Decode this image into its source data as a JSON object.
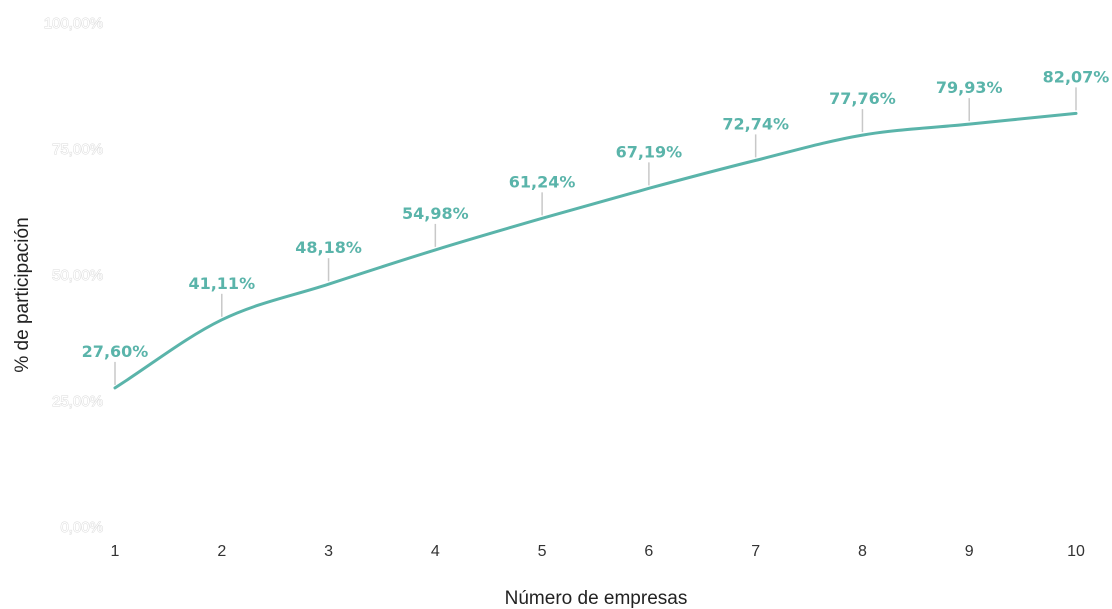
{
  "chart_data": {
    "type": "line",
    "title": "",
    "xlabel": "Número de empresas",
    "ylabel": "% de participación",
    "x": [
      1,
      2,
      3,
      4,
      5,
      6,
      7,
      8,
      9,
      10
    ],
    "x_tick_labels": [
      "1",
      "2",
      "3",
      "4",
      "5",
      "6",
      "7",
      "8",
      "9",
      "10"
    ],
    "y_tick_labels": [
      "0,00%",
      "25,00%",
      "50,00%",
      "75,00%",
      "100,00%"
    ],
    "y_ticks": [
      0,
      25,
      50,
      75,
      100
    ],
    "ylim": [
      0,
      100
    ],
    "grid": false,
    "legend": "none",
    "series": [
      {
        "values": [
          27.6,
          41.11,
          48.18,
          54.98,
          61.24,
          67.19,
          72.74,
          77.76,
          79.93,
          82.07
        ],
        "data_labels": [
          "27,60%",
          "41,11%",
          "48,18%",
          "54,98%",
          "61,24%",
          "67,19%",
          "72,74%",
          "77,76%",
          "79,93%",
          "82,07%"
        ]
      }
    ],
    "colors": {
      "line": "#5ab4aa",
      "data_label": "#5ab4aa"
    }
  }
}
